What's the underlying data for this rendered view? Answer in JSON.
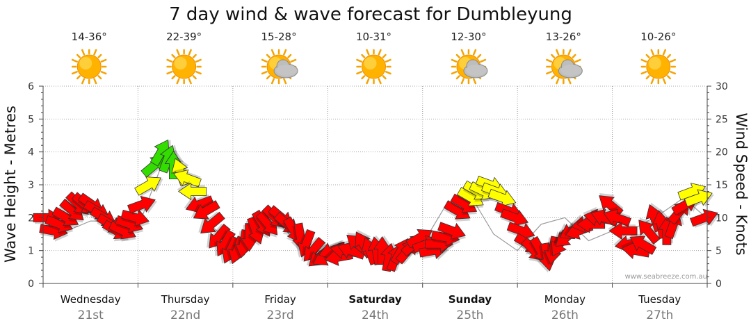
{
  "chart_data": {
    "type": "line",
    "title": "7 day wind & wave forecast for Dumbleyung",
    "ylabel_left": "Wave Height - Metres",
    "ylabel_right": "Wind Speed - Knots",
    "ylim_left": [
      0,
      6
    ],
    "ylim_right": [
      0,
      30
    ],
    "yticks_left": [
      "0",
      "1",
      "2",
      "3",
      "4",
      "5",
      "6"
    ],
    "yticks_right": [
      "0",
      "5",
      "10",
      "15",
      "20",
      "25",
      "30"
    ],
    "days": [
      {
        "name": "Wednesday",
        "date": "21st",
        "temp": "14-36°",
        "icon": "sun-icon",
        "bold": false
      },
      {
        "name": "Thursday",
        "date": "22nd",
        "temp": "22-39°",
        "icon": "sun-icon",
        "bold": false
      },
      {
        "name": "Friday",
        "date": "23rd",
        "temp": "15-28°",
        "icon": "sun-cloud-icon",
        "bold": false
      },
      {
        "name": "Saturday",
        "date": "24th",
        "temp": "10-31°",
        "icon": "sun-icon",
        "bold": true
      },
      {
        "name": "Sunday",
        "date": "25th",
        "temp": "12-30°",
        "icon": "sun-cloud-icon",
        "bold": true
      },
      {
        "name": "Monday",
        "date": "26th",
        "temp": "13-26°",
        "icon": "sun-cloud-icon",
        "bold": false
      },
      {
        "name": "Tuesday",
        "date": "27th",
        "temp": "10-26°",
        "icon": "sun-icon",
        "bold": false
      }
    ],
    "wind_series": {
      "name": "Wind Speed",
      "units": "knots",
      "x_days": [
        0.0,
        0.07,
        0.13,
        0.2,
        0.27,
        0.33,
        0.4,
        0.47,
        0.53,
        0.6,
        0.67,
        0.73,
        0.8,
        0.87,
        0.93,
        1.0,
        1.07,
        1.13,
        1.2,
        1.27,
        1.33,
        1.4,
        1.47,
        1.53,
        1.6,
        1.67,
        1.73,
        1.8,
        1.87,
        1.93,
        2.0,
        2.07,
        2.13,
        2.2,
        2.27,
        2.33,
        2.4,
        2.47,
        2.53,
        2.6,
        2.67,
        2.73,
        2.8,
        2.87,
        2.93,
        3.0,
        3.07,
        3.13,
        3.2,
        3.27,
        3.33,
        3.4,
        3.47,
        3.53,
        3.6,
        3.67,
        3.73,
        3.8,
        3.87,
        3.93,
        4.0,
        4.07,
        4.13,
        4.2,
        4.27,
        4.33,
        4.4,
        4.47,
        4.53,
        4.6,
        4.67,
        4.73,
        4.8,
        4.87,
        4.93,
        5.0,
        5.07,
        5.13,
        5.2,
        5.27,
        5.33,
        5.4,
        5.47,
        5.53,
        5.6,
        5.67,
        5.73,
        5.8,
        5.87,
        5.93,
        6.0,
        6.07,
        6.13,
        6.2,
        6.27,
        6.33,
        6.4,
        6.47,
        6.53,
        6.6,
        6.67,
        6.73,
        6.8,
        6.87,
        6.93
      ],
      "values": [
        10,
        8,
        9,
        10,
        11,
        12,
        12,
        12,
        11,
        10,
        9,
        8,
        8,
        9,
        10,
        12,
        15,
        18,
        20,
        19,
        18,
        17,
        16,
        14,
        12,
        11,
        9,
        7,
        6,
        5,
        5,
        6,
        7,
        8,
        9,
        9,
        10,
        10,
        9,
        8,
        7,
        6,
        5,
        4,
        4,
        5,
        4,
        5,
        5,
        6,
        6,
        5,
        5,
        5,
        4,
        4,
        5,
        5,
        6,
        7,
        6,
        5,
        6,
        7,
        8,
        11,
        12,
        13,
        14,
        14,
        15,
        14,
        13,
        11,
        10,
        8,
        6,
        5,
        5,
        4,
        5,
        6,
        7,
        8,
        8,
        9,
        9,
        10,
        10,
        12,
        10,
        8,
        6,
        5,
        6,
        8,
        10,
        9,
        8,
        9,
        11,
        12,
        14,
        13,
        10
      ],
      "directions_deg": [
        0,
        10,
        20,
        30,
        40,
        45,
        40,
        35,
        30,
        30,
        30,
        30,
        25,
        20,
        15,
        340,
        330,
        320,
        300,
        290,
        270,
        250,
        200,
        180,
        160,
        150,
        140,
        130,
        120,
        115,
        110,
        100,
        90,
        70,
        60,
        50,
        45,
        40,
        40,
        60,
        80,
        110,
        130,
        140,
        150,
        160,
        170,
        190,
        200,
        220,
        240,
        250,
        260,
        270,
        280,
        290,
        300,
        310,
        320,
        330,
        340,
        350,
        0,
        10,
        20,
        30,
        30,
        30,
        30,
        25,
        20,
        20,
        20,
        20,
        20,
        20,
        30,
        45,
        60,
        80,
        100,
        120,
        140,
        150,
        160,
        170,
        180,
        190,
        200,
        220,
        200,
        180,
        170,
        190,
        210,
        230,
        250,
        260,
        270,
        290,
        310,
        330,
        340,
        340,
        340
      ],
      "colors": {
        "calm": "#ff0000",
        "moderate": "#ffff00",
        "strong": "#33dd00"
      }
    },
    "wave_series": {
      "name": "Wave Height",
      "units": "metres",
      "x_days": [
        0.0,
        0.25,
        0.5,
        0.75,
        1.0,
        1.25,
        1.5,
        1.75,
        2.0,
        2.25,
        2.5,
        2.75,
        3.0,
        3.25,
        3.5,
        3.75,
        4.0,
        4.25,
        4.5,
        4.75,
        5.0,
        5.25,
        5.5,
        5.75,
        6.0,
        6.25,
        6.5,
        6.75,
        6.95
      ],
      "values": [
        1.7,
        1.6,
        1.9,
        1.9,
        1.7,
        3.6,
        3.1,
        1.8,
        1.2,
        1.8,
        1.8,
        1.0,
        0.8,
        0.9,
        1.0,
        1.0,
        1.2,
        2.4,
        2.7,
        1.5,
        1.0,
        1.8,
        2.0,
        1.3,
        1.6,
        1.7,
        2.1,
        2.6,
        2.1
      ]
    },
    "grid": true,
    "watermark": "www.seabreeze.com.au"
  }
}
